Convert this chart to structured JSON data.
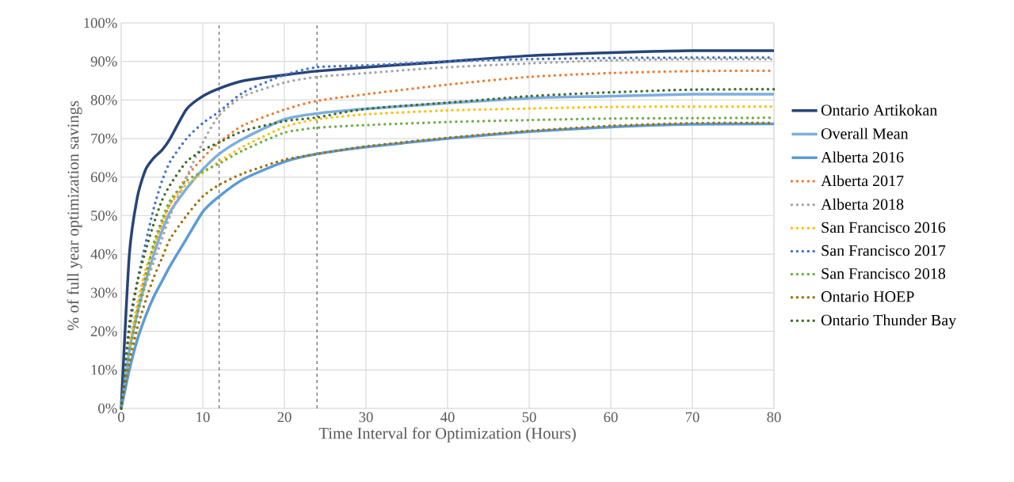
{
  "chart_data": {
    "type": "line",
    "xlabel": "Time Interval for Optimization (Hours)",
    "ylabel": "% of full year optimization savings",
    "x": [
      0,
      1,
      2,
      3,
      4,
      5,
      6,
      8,
      10,
      12,
      15,
      20,
      24,
      30,
      40,
      50,
      60,
      70,
      80
    ],
    "series": [
      {
        "name": "Ontario Artikokan",
        "color": "#264478",
        "line_style": "solid",
        "values": [
          0,
          40,
          55,
          62,
          65,
          67,
          70,
          77.6,
          81,
          83,
          85,
          86.5,
          87.5,
          88.5,
          90,
          91.5,
          92.3,
          92.8,
          92.8
        ]
      },
      {
        "name": "Overall Mean",
        "color": "#7cafdd",
        "line_style": "solid",
        "values": [
          0,
          15,
          25,
          33,
          40,
          46,
          51,
          57,
          62,
          66,
          70,
          75,
          76.5,
          77.7,
          79.2,
          80.5,
          81,
          81.5,
          81.5
        ]
      },
      {
        "name": "Alberta 2016",
        "color": "#5b9bd5",
        "line_style": "solid",
        "values": [
          0,
          10,
          18,
          24,
          29,
          33,
          37,
          44,
          51,
          55,
          59.5,
          64,
          66,
          67.8,
          70,
          71.8,
          73,
          73.7,
          73.8
        ]
      },
      {
        "name": "Alberta 2017",
        "color": "#ed7d31",
        "line_style": "dotted",
        "values": [
          0,
          15,
          26,
          35,
          42,
          48,
          53,
          60,
          65,
          69,
          73.5,
          77.5,
          79.8,
          81.5,
          84,
          86,
          87,
          87.5,
          87.6
        ]
      },
      {
        "name": "Alberta 2018",
        "color": "#a5a5a5",
        "line_style": "dotted",
        "values": [
          0,
          14,
          24,
          32,
          38,
          44,
          50,
          60,
          69,
          76,
          81,
          84.5,
          86,
          87,
          88.5,
          89.5,
          90.3,
          90.6,
          90.6
        ]
      },
      {
        "name": "San Francisco 2016",
        "color": "#ffc000",
        "line_style": "dotted",
        "values": [
          null,
          16.5,
          27.5,
          36,
          42,
          48,
          53,
          58,
          61,
          64,
          68,
          73,
          75,
          76.3,
          77.3,
          77.8,
          78.2,
          78.3,
          78.3
        ]
      },
      {
        "name": "San Francisco 2017",
        "color": "#4472c4",
        "line_style": "dotted",
        "values": [
          0,
          20,
          33,
          43,
          52,
          59,
          64,
          70,
          74,
          77,
          82,
          86.5,
          88.5,
          89,
          90,
          90.6,
          90.9,
          91,
          91
        ]
      },
      {
        "name": "San Francisco 2018",
        "color": "#70ad47",
        "line_style": "dotted",
        "values": [
          0,
          14,
          25,
          34,
          43,
          49,
          54,
          59,
          61.5,
          63.5,
          67,
          71.5,
          72.8,
          73.5,
          74.3,
          74.8,
          75.2,
          75.3,
          75.4
        ]
      },
      {
        "name": "Ontario HOEP",
        "color": "#9e7000",
        "line_style": "dotted",
        "values": [
          0,
          12,
          21,
          28,
          34,
          39,
          44,
          50,
          55,
          58,
          61,
          64.5,
          66,
          68,
          70.2,
          72,
          73.3,
          74,
          74.1
        ]
      },
      {
        "name": "Ontario Thunder Bay",
        "color": "#43682b",
        "line_style": "dotted",
        "values": [
          0,
          22,
          33,
          41,
          48,
          54,
          58,
          64,
          67,
          69,
          72,
          74.5,
          75.5,
          77.7,
          79.3,
          81,
          82,
          82.7,
          82.8
        ]
      }
    ],
    "xlim": [
      0,
      80
    ],
    "xticks": [
      0,
      10,
      20,
      30,
      40,
      50,
      60,
      70,
      80
    ],
    "ylim": [
      0,
      100
    ],
    "yticks": [
      {
        "value": 0,
        "label": "0%"
      },
      {
        "value": 10,
        "label": "10%"
      },
      {
        "value": 20,
        "label": "20%"
      },
      {
        "value": 30,
        "label": "30%"
      },
      {
        "value": 40,
        "label": "40%"
      },
      {
        "value": 50,
        "label": "50%"
      },
      {
        "value": 60,
        "label": "60%"
      },
      {
        "value": 70,
        "label": "70%"
      },
      {
        "value": 80,
        "label": "80%"
      },
      {
        "value": 90,
        "label": "90%"
      },
      {
        "value": 100,
        "label": "100%"
      }
    ],
    "ref_lines": [
      {
        "axis": "x",
        "value": 12,
        "color": "#7f7f7f",
        "line_style": "dashed"
      },
      {
        "axis": "x",
        "value": 24,
        "color": "#7f7f7f",
        "line_style": "dashed"
      }
    ],
    "grid": true,
    "legend": "right",
    "marker": "none"
  }
}
